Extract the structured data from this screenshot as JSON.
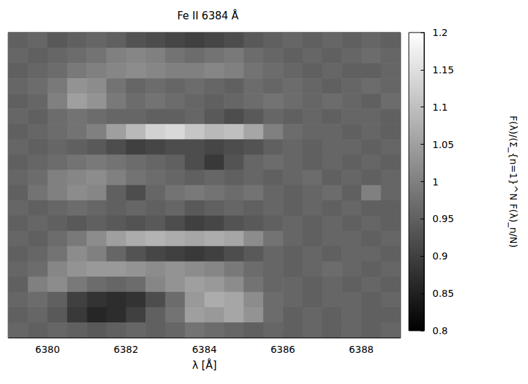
{
  "chart_data": {
    "type": "heatmap",
    "title": "Fe II 6384 Å",
    "x_label": "λ [Å]",
    "xlim": [
      6379,
      6389
    ],
    "xticks": [
      6380,
      6382,
      6384,
      6386,
      6388
    ],
    "tick_labels": "x",
    "x": [
      6379.25,
      6379.75,
      6380.25,
      6380.75,
      6381.25,
      6381.75,
      6382.25,
      6382.75,
      6383.25,
      6383.75,
      6384.25,
      6384.75,
      6385.25,
      6385.75,
      6386.25,
      6386.75,
      6387.25,
      6387.75,
      6388.25,
      6388.75
    ],
    "cells": [
      [
        0.95,
        0.96,
        0.94,
        0.95,
        0.96,
        0.95,
        0.93,
        0.92,
        0.91,
        0.9,
        0.91,
        0.92,
        0.94,
        0.95,
        0.96,
        0.95,
        0.96,
        0.95,
        0.96,
        0.95
      ],
      [
        0.96,
        0.95,
        0.96,
        0.97,
        0.98,
        1.0,
        1.01,
        1.0,
        0.98,
        0.97,
        0.98,
        0.99,
        0.97,
        0.96,
        0.95,
        0.96,
        0.95,
        0.96,
        0.97,
        0.96
      ],
      [
        0.95,
        0.96,
        0.97,
        0.99,
        1.0,
        1.01,
        1.02,
        1.01,
        1.0,
        1.0,
        1.01,
        1.0,
        0.98,
        0.97,
        0.96,
        0.95,
        0.96,
        0.95,
        0.95,
        0.96
      ],
      [
        0.96,
        0.97,
        0.99,
        1.03,
        1.02,
        0.98,
        0.96,
        0.97,
        0.96,
        0.97,
        0.96,
        0.95,
        0.97,
        0.96,
        0.97,
        0.96,
        0.95,
        0.96,
        0.97,
        0.96
      ],
      [
        0.95,
        0.96,
        1.0,
        1.05,
        1.03,
        0.99,
        0.97,
        0.98,
        0.97,
        0.96,
        0.95,
        0.96,
        0.97,
        0.98,
        0.97,
        0.96,
        0.97,
        0.96,
        0.95,
        0.97
      ],
      [
        0.96,
        0.95,
        0.97,
        0.98,
        0.97,
        0.96,
        0.96,
        0.95,
        0.95,
        0.96,
        0.94,
        0.92,
        0.94,
        0.96,
        0.95,
        0.96,
        0.95,
        0.96,
        0.96,
        0.95
      ],
      [
        0.95,
        0.96,
        0.97,
        0.98,
        1.0,
        1.05,
        1.09,
        1.13,
        1.14,
        1.11,
        1.09,
        1.1,
        1.06,
        1.0,
        0.97,
        0.96,
        0.96,
        0.95,
        0.96,
        0.95
      ],
      [
        0.96,
        0.95,
        0.96,
        0.95,
        0.94,
        0.92,
        0.9,
        0.91,
        0.92,
        0.92,
        0.91,
        0.92,
        0.93,
        0.95,
        0.96,
        0.95,
        0.96,
        0.96,
        0.95,
        0.96
      ],
      [
        0.95,
        0.96,
        0.97,
        0.98,
        0.99,
        0.98,
        0.97,
        0.96,
        0.95,
        0.92,
        0.89,
        0.93,
        0.96,
        0.97,
        0.96,
        0.95,
        0.96,
        0.95,
        0.96,
        0.95
      ],
      [
        0.96,
        0.97,
        1.0,
        1.01,
        1.02,
        1.0,
        0.98,
        0.97,
        0.96,
        0.95,
        0.96,
        0.95,
        0.96,
        0.95,
        0.96,
        0.97,
        0.95,
        0.96,
        0.95,
        0.96
      ],
      [
        0.95,
        0.98,
        1.0,
        1.02,
        1.01,
        0.95,
        0.92,
        0.96,
        0.98,
        0.99,
        0.98,
        0.97,
        0.98,
        0.96,
        0.95,
        0.96,
        0.97,
        0.95,
        1.0,
        0.96
      ],
      [
        0.96,
        0.95,
        0.96,
        0.97,
        0.96,
        0.95,
        0.96,
        0.95,
        0.96,
        0.94,
        0.95,
        0.96,
        0.95,
        0.96,
        0.95,
        0.96,
        0.95,
        0.96,
        0.95,
        0.95
      ],
      [
        0.95,
        0.96,
        0.95,
        0.94,
        0.95,
        0.94,
        0.93,
        0.94,
        0.92,
        0.9,
        0.91,
        0.93,
        0.94,
        0.95,
        0.96,
        0.95,
        0.96,
        0.95,
        0.96,
        0.95
      ],
      [
        0.96,
        0.95,
        0.97,
        0.99,
        1.02,
        1.05,
        1.07,
        1.08,
        1.07,
        1.06,
        1.07,
        1.06,
        1.02,
        0.98,
        0.96,
        0.95,
        0.96,
        0.96,
        0.95,
        0.96
      ],
      [
        0.95,
        0.96,
        0.98,
        1.02,
        1.0,
        0.96,
        0.93,
        0.91,
        0.9,
        0.89,
        0.9,
        0.92,
        0.94,
        0.96,
        0.95,
        0.96,
        0.95,
        0.96,
        0.96,
        0.95
      ],
      [
        0.96,
        0.97,
        1.01,
        1.03,
        1.04,
        1.04,
        1.03,
        1.02,
        1.03,
        1.02,
        1.01,
        0.99,
        0.97,
        0.96,
        0.95,
        0.96,
        0.97,
        0.96,
        0.95,
        0.96
      ],
      [
        0.95,
        1.0,
        1.02,
        0.99,
        0.97,
        0.96,
        0.97,
        1.01,
        1.03,
        1.05,
        1.04,
        1.02,
        0.98,
        0.96,
        0.96,
        0.95,
        0.96,
        0.95,
        0.96,
        0.95
      ],
      [
        0.96,
        0.97,
        0.95,
        0.9,
        0.88,
        0.87,
        0.88,
        0.92,
        0.97,
        1.04,
        1.07,
        1.06,
        1.02,
        0.97,
        0.96,
        0.95,
        0.96,
        0.96,
        0.95,
        0.96
      ],
      [
        0.95,
        0.96,
        0.94,
        0.89,
        0.86,
        0.87,
        0.9,
        0.95,
        0.98,
        1.05,
        1.04,
        1.06,
        1.03,
        0.97,
        0.95,
        0.96,
        0.95,
        0.96,
        0.95,
        0.95
      ],
      [
        0.96,
        0.95,
        0.96,
        0.95,
        0.94,
        0.95,
        0.96,
        0.95,
        0.96,
        0.98,
        0.97,
        0.96,
        0.95,
        0.96,
        0.95,
        0.96,
        0.95,
        0.96,
        0.95,
        0.96
      ]
    ],
    "colorbar": {
      "label": "F(λ)/(Σ_{n=1}^N F(λ)_n/N)",
      "range": [
        0.8,
        1.2
      ],
      "ticks": [
        0.8,
        0.85,
        0.9,
        0.95,
        1,
        1.05,
        1.1,
        1.15,
        1.2
      ]
    }
  }
}
